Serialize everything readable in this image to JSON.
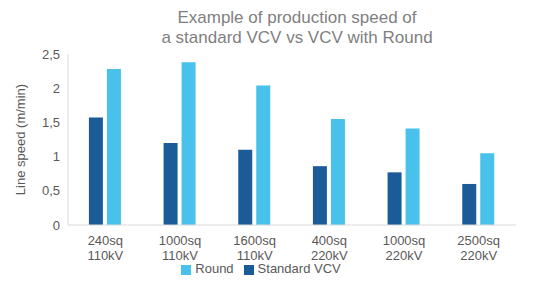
{
  "chart_data": {
    "type": "bar",
    "title": "Example of production speed of\na standard VCV vs VCV with Round",
    "y_label": "Line speed (m/min)",
    "categories": [
      "240sq 110kV",
      "1000sq 110kV",
      "1600sq 110kV",
      "400sq 220kV",
      "1000sq 220kV",
      "2500sq 220kV"
    ],
    "series": [
      {
        "name": "Standard VCV",
        "color": "#1b5b97",
        "values": [
          1.57,
          1.2,
          1.1,
          0.86,
          0.77,
          0.6
        ]
      },
      {
        "name": "Round",
        "color": "#48c2ea",
        "values": [
          2.28,
          2.38,
          2.04,
          1.55,
          1.41,
          1.05
        ]
      }
    ],
    "ylim": [
      0,
      2.5
    ],
    "yticks": [
      0,
      {
        "value": 0.5,
        "label": "0,5"
      },
      1,
      {
        "value": 1.5,
        "label": "1,5"
      },
      2,
      {
        "value": 2.5,
        "label": "2,5"
      }
    ],
    "grid": false,
    "legend": "bottom"
  }
}
